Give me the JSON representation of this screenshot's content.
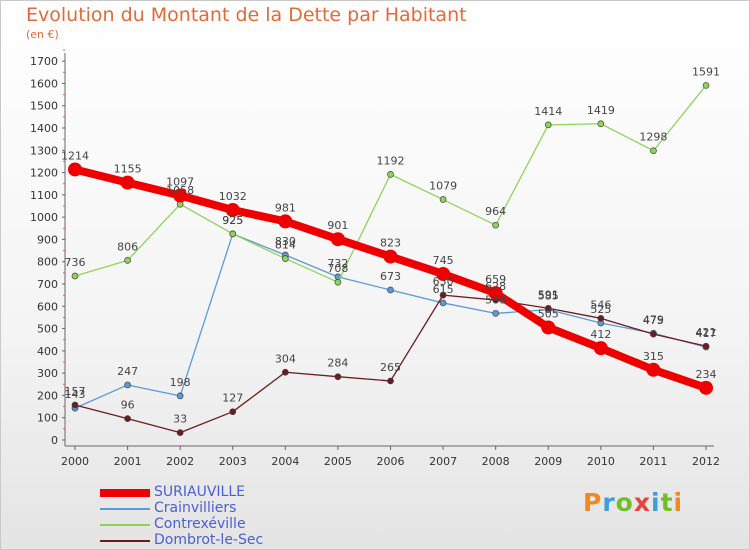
{
  "title": "Evolution du Montant de la Dette par Habitant",
  "subtitle": "(en €)",
  "logo": {
    "text": "Proxiti",
    "colors": [
      "#f08a1c",
      "#3aa0d8",
      "#6fbf2a",
      "#e8433a",
      "#3aa0d8",
      "#6fbf2a",
      "#f08a1c"
    ]
  },
  "chart_data": {
    "type": "line",
    "x": [
      "2000",
      "2001",
      "2002",
      "2003",
      "2004",
      "2005",
      "2006",
      "2007",
      "2008",
      "2009",
      "2010",
      "2011",
      "2012"
    ],
    "yticks": [
      0,
      100,
      200,
      300,
      400,
      500,
      600,
      700,
      800,
      900,
      1000,
      1100,
      1200,
      1300,
      1400,
      1500,
      1600,
      1700
    ],
    "ylim": [
      0,
      1750
    ],
    "grid": false,
    "legend_position": "bottom-left",
    "series": [
      {
        "name": "SURIAUVILLE",
        "color": "#ee0000",
        "width": 8,
        "values": [
          1214,
          1155,
          1097,
          1032,
          981,
          901,
          823,
          745,
          659,
          505,
          412,
          315,
          234
        ]
      },
      {
        "name": "Crainvilliers",
        "color": "#5b9bd5",
        "width": 1.3,
        "values": [
          143,
          247,
          198,
          925,
          830,
          732,
          673,
          615,
          568,
          585,
          525,
          479,
          417
        ]
      },
      {
        "name": "Contrexéville",
        "color": "#8fd45a",
        "width": 1.3,
        "values": [
          736,
          806,
          1058,
          925,
          814,
          708,
          1192,
          1079,
          964,
          1414,
          1419,
          1298,
          1591
        ]
      },
      {
        "name": "Dombrot-le-Sec",
        "color": "#6b1c22",
        "width": 1.3,
        "values": [
          157,
          96,
          33,
          127,
          304,
          284,
          265,
          650,
          628,
          591,
          546,
          475,
          421
        ]
      }
    ]
  }
}
